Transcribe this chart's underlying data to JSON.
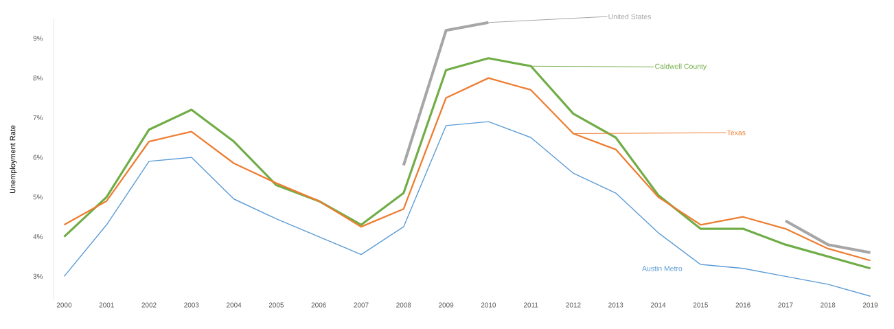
{
  "chart_data": {
    "type": "line",
    "ylabel": "Unemployment Rate",
    "categories": [
      "2000",
      "2001",
      "2002",
      "2003",
      "2004",
      "2005",
      "2006",
      "2007",
      "2008",
      "2009",
      "2010",
      "2011",
      "2012",
      "2013",
      "2014",
      "2015",
      "2016",
      "2017",
      "2018",
      "2019"
    ],
    "series": [
      {
        "name": "United States",
        "color": "#a6a6a6",
        "values": [
          null,
          null,
          null,
          null,
          null,
          null,
          null,
          null,
          5.8,
          9.2,
          9.4,
          null,
          null,
          null,
          null,
          null,
          null,
          4.4,
          3.8,
          3.6
        ]
      },
      {
        "name": "Caldwell County",
        "color": "#70ad47",
        "values": [
          4.0,
          5.0,
          6.7,
          7.2,
          6.4,
          5.3,
          4.9,
          4.3,
          5.1,
          8.2,
          8.5,
          8.3,
          7.1,
          6.5,
          5.05,
          4.2,
          4.2,
          3.8,
          3.5,
          3.2
        ]
      },
      {
        "name": "Texas",
        "color": "#ed7d31",
        "values": [
          4.3,
          4.9,
          6.4,
          6.65,
          5.85,
          5.35,
          4.9,
          4.25,
          4.7,
          7.5,
          8.0,
          7.7,
          6.6,
          6.2,
          5.0,
          4.3,
          4.5,
          4.2,
          3.7,
          3.4
        ]
      },
      {
        "name": "Austin Metro",
        "color": "#5b9bd5",
        "values": [
          3.0,
          4.3,
          5.9,
          6.0,
          4.95,
          4.45,
          4.0,
          3.55,
          4.25,
          6.8,
          6.9,
          6.5,
          5.6,
          5.1,
          4.1,
          3.3,
          3.2,
          3.0,
          2.8,
          2.5
        ]
      }
    ],
    "ylim": [
      2.4,
      9.5
    ],
    "yticks": [
      {
        "value": 3,
        "label": "3%"
      },
      {
        "value": 4,
        "label": "4%"
      },
      {
        "value": 5,
        "label": "5%"
      },
      {
        "value": 6,
        "label": "6%"
      },
      {
        "value": 7,
        "label": "7%"
      },
      {
        "value": 8,
        "label": "8%"
      },
      {
        "value": 9,
        "label": "9%"
      }
    ],
    "marker": "none",
    "line_style": "solid"
  }
}
